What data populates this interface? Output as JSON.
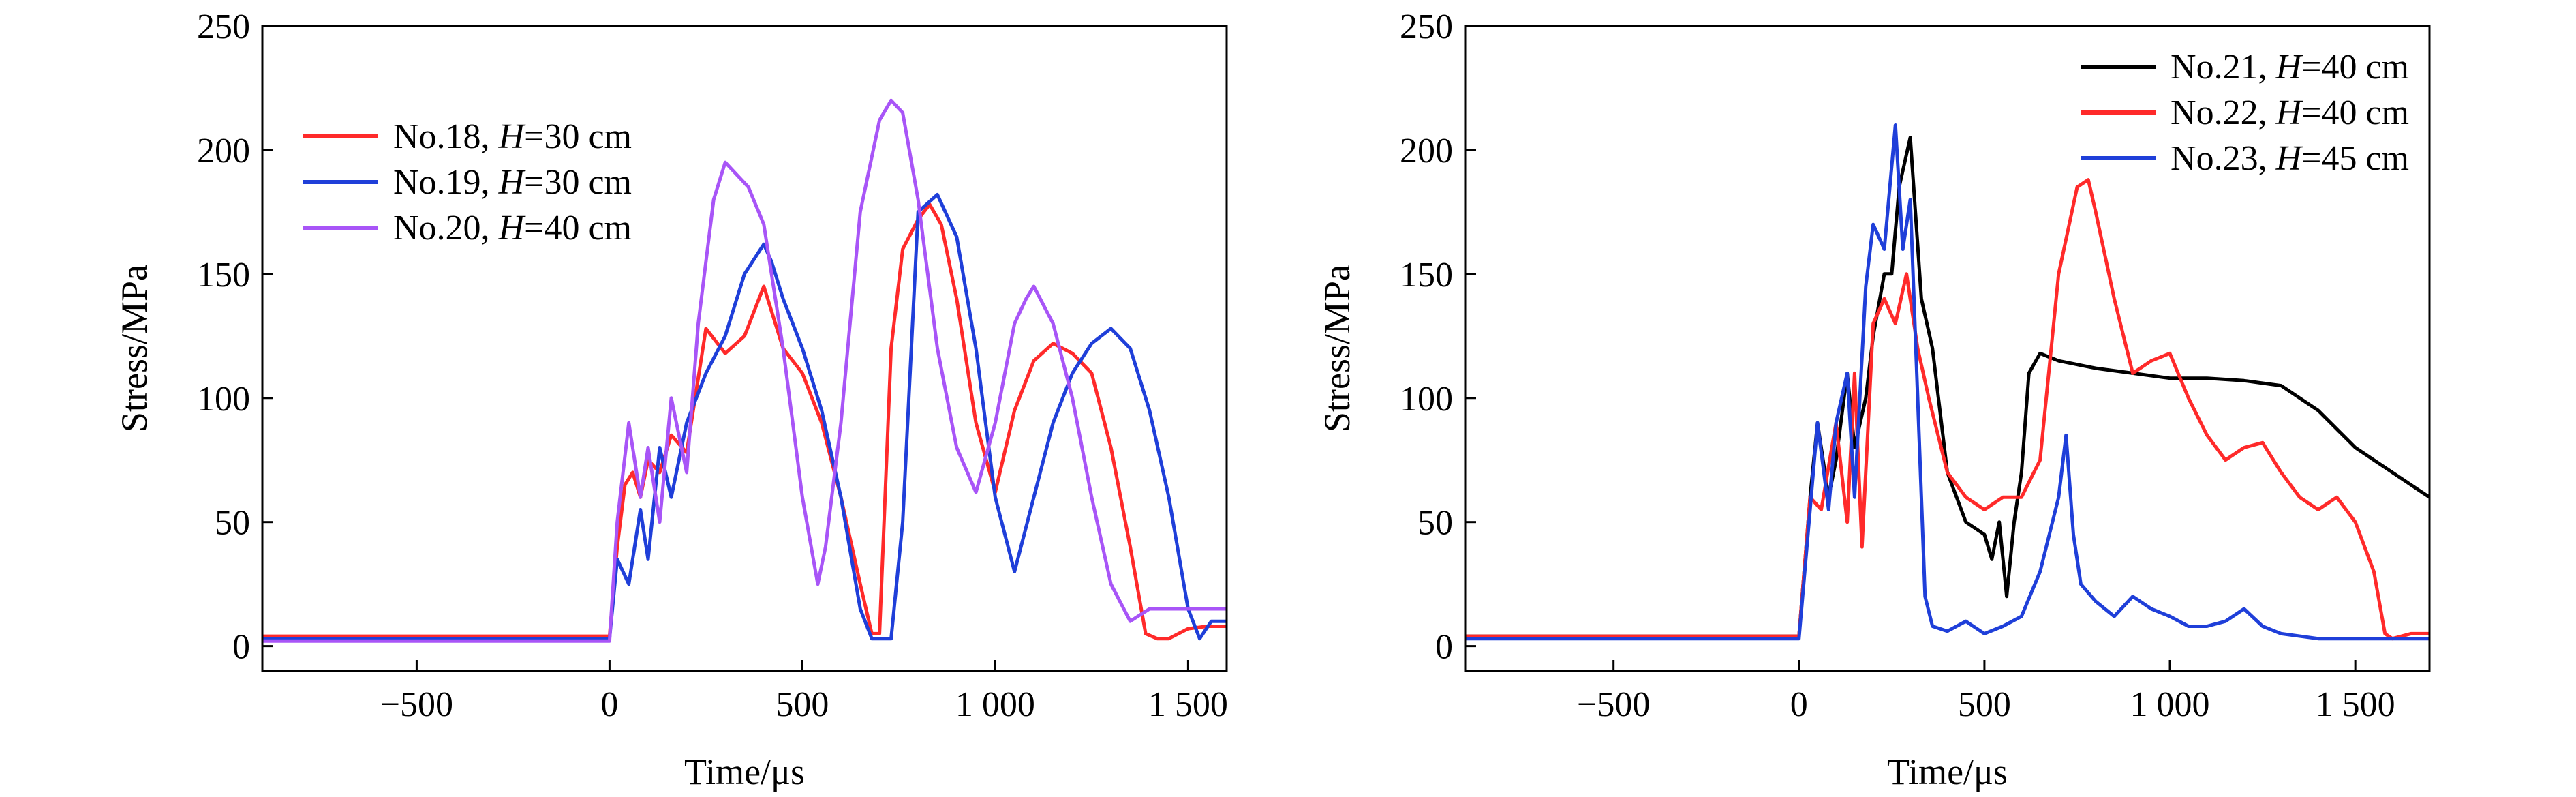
{
  "chart_data": [
    {
      "type": "line",
      "title": "",
      "xlabel": "Time/μs",
      "ylabel": "Stress/MPa",
      "xlim": [
        -900,
        1600
      ],
      "ylim": [
        -10,
        250
      ],
      "xticks": [
        -500,
        0,
        500,
        1000,
        1500
      ],
      "xtick_labels": [
        "−500",
        "0",
        "500",
        "1 000",
        "1 500"
      ],
      "yticks": [
        0,
        50,
        100,
        150,
        200,
        250
      ],
      "ytick_labels": [
        "0",
        "50",
        "100",
        "150",
        "200",
        "250"
      ],
      "legend_position": "top-left",
      "series": [
        {
          "name": "No.18, H=30 cm",
          "label_prefix": "No.18, ",
          "label_var": "H",
          "label_suffix": "=30 cm",
          "color": "#ff2a2a",
          "x": [
            -900,
            -500,
            -200,
            0,
            20,
            40,
            60,
            80,
            100,
            130,
            160,
            200,
            250,
            300,
            350,
            400,
            450,
            500,
            550,
            600,
            650,
            680,
            700,
            730,
            760,
            800,
            830,
            860,
            900,
            950,
            1000,
            1050,
            1100,
            1150,
            1200,
            1250,
            1300,
            1350,
            1390,
            1420,
            1450,
            1500,
            1550,
            1600
          ],
          "y": [
            4,
            4,
            4,
            4,
            40,
            65,
            70,
            60,
            75,
            70,
            85,
            78,
            128,
            118,
            125,
            145,
            120,
            110,
            90,
            60,
            25,
            5,
            5,
            120,
            160,
            172,
            178,
            170,
            140,
            90,
            62,
            95,
            115,
            122,
            118,
            110,
            80,
            40,
            5,
            3,
            3,
            7,
            8,
            8
          ]
        },
        {
          "name": "No.19, H=30 cm",
          "label_prefix": "No.19, ",
          "label_var": "H",
          "label_suffix": "=30 cm",
          "color": "#1f3fd9",
          "x": [
            -900,
            -500,
            -200,
            0,
            20,
            50,
            80,
            100,
            130,
            160,
            200,
            250,
            300,
            350,
            400,
            420,
            450,
            500,
            550,
            600,
            650,
            680,
            700,
            730,
            760,
            800,
            850,
            900,
            950,
            1000,
            1050,
            1100,
            1150,
            1200,
            1250,
            1300,
            1350,
            1400,
            1450,
            1500,
            1530,
            1560,
            1600
          ],
          "y": [
            3,
            3,
            3,
            3,
            35,
            25,
            55,
            35,
            80,
            60,
            90,
            110,
            125,
            150,
            162,
            155,
            140,
            120,
            95,
            60,
            15,
            3,
            3,
            3,
            50,
            175,
            182,
            165,
            120,
            60,
            30,
            60,
            90,
            110,
            122,
            128,
            120,
            95,
            60,
            15,
            3,
            10,
            10
          ]
        },
        {
          "name": "No.20, H=40 cm",
          "label_prefix": "No.20, ",
          "label_var": "H",
          "label_suffix": "=40 cm",
          "color": "#a855f7",
          "x": [
            -900,
            -500,
            -200,
            0,
            20,
            50,
            80,
            100,
            130,
            160,
            200,
            230,
            270,
            300,
            330,
            360,
            400,
            450,
            500,
            540,
            560,
            600,
            650,
            700,
            730,
            760,
            800,
            850,
            900,
            950,
            1000,
            1050,
            1080,
            1100,
            1150,
            1200,
            1250,
            1300,
            1350,
            1400,
            1500,
            1600
          ],
          "y": [
            2,
            2,
            2,
            2,
            50,
            90,
            60,
            80,
            50,
            100,
            70,
            130,
            180,
            195,
            190,
            185,
            170,
            120,
            60,
            25,
            40,
            90,
            175,
            212,
            220,
            215,
            180,
            120,
            80,
            62,
            90,
            130,
            140,
            145,
            130,
            100,
            60,
            25,
            10,
            15,
            15,
            15
          ]
        }
      ]
    },
    {
      "type": "line",
      "title": "",
      "xlabel": "Time/μs",
      "ylabel": "Stress/MPa",
      "xlim": [
        -900,
        1700
      ],
      "ylim": [
        -10,
        250
      ],
      "xticks": [
        -500,
        0,
        500,
        1000,
        1500
      ],
      "xtick_labels": [
        "−500",
        "0",
        "500",
        "1 000",
        "1 500"
      ],
      "yticks": [
        0,
        50,
        100,
        150,
        200,
        250
      ],
      "ytick_labels": [
        "0",
        "50",
        "100",
        "150",
        "200",
        "250"
      ],
      "legend_position": "top-right",
      "series": [
        {
          "name": "No.21, H=40 cm",
          "label_prefix": "No.21, ",
          "label_var": "H",
          "label_suffix": "=40 cm",
          "color": "#000000",
          "x": [
            -900,
            -500,
            -200,
            0,
            30,
            50,
            80,
            100,
            130,
            150,
            180,
            200,
            230,
            250,
            270,
            300,
            330,
            360,
            400,
            450,
            500,
            520,
            540,
            560,
            580,
            600,
            620,
            650,
            700,
            800,
            900,
            1000,
            1100,
            1200,
            1300,
            1350,
            1400,
            1500,
            1600,
            1700
          ],
          "y": [
            4,
            4,
            4,
            4,
            60,
            90,
            60,
            75,
            110,
            80,
            100,
            125,
            150,
            150,
            185,
            205,
            140,
            120,
            70,
            50,
            45,
            35,
            50,
            20,
            50,
            70,
            110,
            118,
            115,
            112,
            110,
            108,
            108,
            107,
            105,
            100,
            95,
            80,
            70,
            60
          ]
        },
        {
          "name": "No.22, H=40 cm",
          "label_prefix": "No.22, ",
          "label_var": "H",
          "label_suffix": "=40 cm",
          "color": "#ff2a2a",
          "x": [
            -900,
            -500,
            -200,
            0,
            30,
            60,
            100,
            130,
            150,
            170,
            200,
            230,
            260,
            290,
            320,
            350,
            400,
            450,
            500,
            550,
            600,
            650,
            700,
            750,
            780,
            800,
            850,
            900,
            950,
            1000,
            1050,
            1100,
            1150,
            1200,
            1250,
            1300,
            1350,
            1400,
            1450,
            1500,
            1550,
            1580,
            1600,
            1650,
            1700
          ],
          "y": [
            4,
            4,
            4,
            4,
            60,
            55,
            90,
            50,
            110,
            40,
            130,
            140,
            130,
            150,
            120,
            100,
            70,
            60,
            55,
            60,
            60,
            75,
            150,
            185,
            188,
            175,
            140,
            110,
            115,
            118,
            100,
            85,
            75,
            80,
            82,
            70,
            60,
            55,
            60,
            50,
            30,
            5,
            3,
            5,
            5
          ]
        },
        {
          "name": "No.23, H=45 cm",
          "label_prefix": "No.23, ",
          "label_var": "H",
          "label_suffix": "=45 cm",
          "color": "#1f3fd9",
          "x": [
            -900,
            -500,
            -200,
            0,
            30,
            50,
            80,
            100,
            130,
            150,
            180,
            200,
            230,
            260,
            280,
            300,
            320,
            340,
            360,
            400,
            450,
            500,
            550,
            600,
            650,
            700,
            720,
            740,
            760,
            800,
            850,
            900,
            950,
            1000,
            1050,
            1100,
            1150,
            1200,
            1250,
            1300,
            1400,
            1500,
            1600,
            1700
          ],
          "y": [
            3,
            3,
            3,
            3,
            55,
            90,
            55,
            90,
            110,
            60,
            145,
            170,
            160,
            210,
            160,
            180,
            100,
            20,
            8,
            6,
            10,
            5,
            8,
            12,
            30,
            60,
            85,
            45,
            25,
            18,
            12,
            20,
            15,
            12,
            8,
            8,
            10,
            15,
            8,
            5,
            3,
            3,
            3,
            3
          ]
        }
      ]
    }
  ]
}
